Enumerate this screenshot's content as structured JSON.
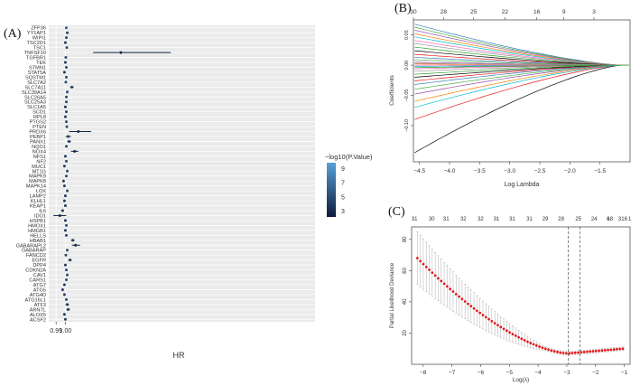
{
  "chart_data": [
    {
      "type": "forest",
      "panel_label": "(A)",
      "xlabel": "HR",
      "xticks": [
        {
          "label": "0.99",
          "value": 0.99
        },
        {
          "label": "1.00",
          "value": 1.0
        }
      ],
      "xlim": [
        0.982,
        1.27
      ],
      "legend_title": "−log10(P.Value)",
      "legend_ticks": [
        "9",
        "7",
        "5",
        "3"
      ],
      "legend_values": [
        9,
        7,
        5,
        3
      ],
      "color_low": "#0f1a3a",
      "color_high": "#56a0d8",
      "colorbar_range": [
        2.2,
        9.8
      ],
      "genes": [
        "ZFP36",
        "YY1AP1",
        "WIPI1",
        "TSC2D1",
        "TSC1",
        "TNFSF10",
        "TGFBR1",
        "TEK",
        "STMN1",
        "STAT5A",
        "SQSTM1",
        "SLC7A2",
        "SLC7A11",
        "SLC39A14",
        "SLC26A5",
        "SLC25A3",
        "SLC1A5",
        "SCD1",
        "RPL8",
        "PTGS2",
        "PTEN",
        "PRDX6",
        "PEBP1",
        "PANX1",
        "NQO1",
        "NOX4",
        "NFS1",
        "NF2",
        "MUC1",
        "MT1G",
        "MAPK9",
        "MAPK8",
        "MAPK14",
        "LOX",
        "LAMP2",
        "KLHL1",
        "KEAP1",
        "IL6",
        "IDO1",
        "HSPB1",
        "HMOX1",
        "HMGB1",
        "HELLS",
        "HBAB1",
        "GABARAPL2",
        "GABARAP",
        "FANCD2",
        "EGFR",
        "DPP4",
        "CDKN2A",
        "CAV1",
        "CARS1",
        "ATG7",
        "ATG5",
        "ATG4D",
        "ATG16L1",
        "ATF3",
        "ARNTL",
        "ALOX5",
        "ACSF2"
      ],
      "hr": [
        1.001,
        1.002,
        1.001,
        1.0,
        1.0015,
        1.06,
        1.0005,
        1.0,
        1.001,
        0.999,
        1.001,
        1.0005,
        1.007,
        1.002,
        1.001,
        1.001,
        1.0,
        1.001,
        1.0,
        1.001,
        1.0015,
        1.014,
        1.003,
        1.004,
        1.001,
        1.01,
        1.0,
        1.001,
        0.999,
        1.002,
        1.001,
        0.998,
        0.999,
        1.002,
        1.0,
        0.999,
        1.0,
        0.997,
        0.994,
        1.0,
        1.001,
        1.0,
        1.001,
        1.008,
        1.011,
        1.002,
        1.0005,
        1.005,
        1.0,
        1.001,
        1.002,
        1.001,
        0.999,
        0.997,
        0.999,
        1.001,
        1.002,
        1.003,
        0.999,
        1.0
      ],
      "lower": [
        1.0,
        1.0005,
        1.0,
        0.999,
        1.0005,
        1.03,
        0.999,
        0.999,
        1.0,
        0.998,
        1.0,
        0.9995,
        1.005,
        1.001,
        1.0,
        1.0,
        0.999,
        1.0,
        0.999,
        1.0,
        1.0005,
        1.004,
        1.0,
        1.002,
        1.0,
        1.006,
        0.999,
        1.0,
        0.998,
        1.001,
        1.0,
        0.997,
        0.998,
        1.001,
        0.999,
        0.998,
        0.999,
        0.996,
        0.987,
        0.999,
        1.0,
        0.999,
        1.0,
        1.006,
        1.007,
        1.001,
        0.9995,
        1.003,
        0.999,
        1.0,
        1.001,
        1.0,
        0.998,
        0.996,
        0.998,
        1.0,
        1.0,
        1.001,
        0.998,
        0.999
      ],
      "upper": [
        1.002,
        1.0035,
        1.002,
        1.001,
        1.0025,
        1.114,
        1.002,
        1.001,
        1.002,
        1.0,
        1.002,
        1.0015,
        1.009,
        1.003,
        1.002,
        1.002,
        1.001,
        1.002,
        1.001,
        1.002,
        1.0025,
        1.028,
        1.006,
        1.006,
        1.002,
        1.014,
        1.001,
        1.002,
        1.0,
        1.003,
        1.002,
        0.999,
        1.0,
        1.003,
        1.001,
        1.0,
        1.001,
        0.998,
        1.001,
        1.001,
        1.002,
        1.001,
        1.002,
        1.01,
        1.016,
        1.003,
        1.0015,
        1.007,
        1.001,
        1.002,
        1.003,
        1.002,
        1.0,
        0.998,
        1.0,
        1.002,
        1.004,
        1.005,
        1.0,
        1.001
      ],
      "neglogp": [
        6,
        5,
        5,
        4,
        5,
        3,
        5,
        4,
        5,
        4,
        5,
        5,
        4,
        5,
        5,
        5,
        4,
        5,
        4,
        5,
        5,
        3,
        4,
        4,
        5,
        3,
        4,
        5,
        4,
        5,
        5,
        4,
        4,
        5,
        4,
        4,
        4,
        4,
        3,
        4,
        5,
        4,
        5,
        4,
        3,
        5,
        5,
        4,
        4,
        5,
        5,
        5,
        4,
        4,
        4,
        5,
        4,
        4,
        4,
        4
      ]
    },
    {
      "type": "line",
      "panel_label": "(B)",
      "title": "",
      "xlabel": "Log Lambda",
      "ylabel": "Coefficients",
      "xlim": [
        -4.6,
        -1.0
      ],
      "ylim": [
        -0.16,
        0.075
      ],
      "xticks": [
        -4.5,
        -4.0,
        -3.5,
        -3.0,
        -2.5,
        -2.0,
        -1.5
      ],
      "xtick_labels": [
        "−4.5",
        "−4.0",
        "−3.5",
        "−3.0",
        "−2.5",
        "−2.0",
        "−1.5"
      ],
      "yticks": [
        -0.1,
        -0.05,
        0.0,
        0.05
      ],
      "ytick_labels": [
        "−0.10",
        "−0.05",
        "0.00",
        "0.05"
      ],
      "top_axis_values": [
        -4.6,
        -4.1,
        -3.6,
        -3.08,
        -2.55,
        -2.1,
        -1.6
      ],
      "top_axis_labels": [
        "30",
        "28",
        "25",
        "22",
        "16",
        "9",
        "3"
      ],
      "line_zero_at": -1.15,
      "colors": [
        "#000000",
        "#e41a1c",
        "#377eb8",
        "#4daf4a",
        "#984ea3",
        "#ff7f00",
        "#00bcd4",
        "#ff69b4",
        "#999999",
        "#2ca02c"
      ],
      "start_values": [
        -0.145,
        -0.09,
        0.068,
        0.063,
        0.058,
        0.052,
        0.047,
        0.041,
        0.036,
        0.03,
        0.024,
        0.018,
        0.013,
        0.009,
        0.005,
        0.002,
        -0.002,
        -0.006,
        -0.01,
        -0.015,
        -0.02,
        -0.026,
        -0.032,
        -0.04,
        -0.048,
        -0.06,
        -0.07,
        0.0,
        0.003,
        -0.004
      ]
    },
    {
      "type": "scatter",
      "panel_label": "(C)",
      "xlabel": "Log(λ)",
      "ylabel": "Partial Likelihood Deviance",
      "xlim": [
        -8.4,
        -0.8
      ],
      "ylim": [
        0,
        88
      ],
      "xticks": [
        -8,
        -7,
        -6,
        -5,
        -4,
        -3,
        -2,
        -1
      ],
      "xtick_labels": [
        "−8",
        "−7",
        "−6",
        "−5",
        "−4",
        "−3",
        "−2",
        "−1"
      ],
      "yticks": [
        20,
        40,
        60,
        80
      ],
      "ytick_labels": [
        "20",
        "40",
        "60",
        "80"
      ],
      "top_axis_values": [
        -8.3,
        -7.7,
        -7.2,
        -6.6,
        -6.0,
        -5.45,
        -4.9,
        -4.3,
        -3.75,
        -3.2,
        -2.6,
        -2.05,
        -1.5,
        -1.0
      ],
      "top_axis_labels": [
        "31",
        "30",
        "31",
        "32",
        "32",
        "31",
        "31",
        "31",
        "29",
        "28",
        "25",
        "24",
        "18",
        "16"
      ],
      "extra_top_labels": [
        "6",
        "3",
        "1"
      ],
      "extra_top_values": [
        -1.75,
        -1.35,
        -1.0
      ],
      "lambda_min": -2.95,
      "lambda_1se": -2.55,
      "deviance_start": 68,
      "deviance_min": 7,
      "deviance_end": 10,
      "n_points": 70,
      "error_start": 17,
      "error_end": 1.2
    }
  ]
}
